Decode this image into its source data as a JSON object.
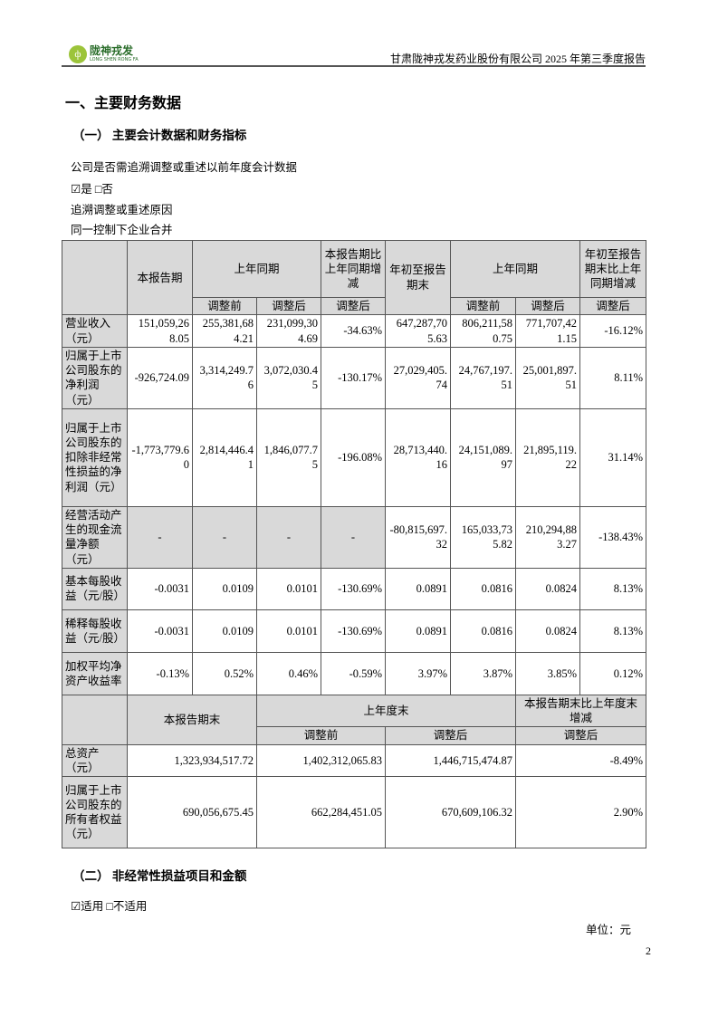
{
  "header": {
    "logo_cn": "陇神戎发",
    "logo_en": "LONG SHEN RONG FA",
    "report_title": "甘肃陇神戎发药业股份有限公司 2025 年第三季度报告"
  },
  "section_title": "一、主要财务数据",
  "subsection1": "（一） 主要会计数据和财务指标",
  "question": "公司是否需追溯调整或重述以前年度会计数据",
  "options1": "☑是 □否",
  "reason_label": "追溯调整或重述原因",
  "reason": "同一控制下企业合并",
  "table1": {
    "headers": {
      "current": "本报告期",
      "prior": "上年同期",
      "change": "本报告期比上年同期增减",
      "ytd": "年初至报告期末",
      "prior_ytd": "上年同期",
      "ytd_change": "年初至报告期末比上年同期增减",
      "before": "调整前",
      "after": "调整后"
    },
    "rows": [
      {
        "label": "营业收入（元）",
        "values": [
          "151,059,268.05",
          "255,381,684.21",
          "231,099,304.69",
          "-34.63%",
          "647,287,705.63",
          "806,211,580.75",
          "771,707,421.15",
          "-16.12%"
        ]
      },
      {
        "label": "归属于上市公司股东的净利润（元）",
        "values": [
          "-926,724.09",
          "3,314,249.76",
          "3,072,030.45",
          "-130.17%",
          "27,029,405.74",
          "24,767,197.51",
          "25,001,897.51",
          "8.11%"
        ]
      },
      {
        "label": "归属于上市公司股东的扣除非经常性损益的净利润（元）",
        "values": [
          "-1,773,779.60",
          "2,814,446.41",
          "1,846,077.75",
          "-196.08%",
          "28,713,440.16",
          "24,151,089.97",
          "21,895,119.22",
          "31.14%"
        ]
      },
      {
        "label": "经营活动产生的现金流量净额（元）",
        "values": [
          "-",
          "-",
          "-",
          "-",
          "-80,815,697.32",
          "165,033,735.82",
          "210,294,883.27",
          "-138.43%"
        ]
      },
      {
        "label": "基本每股收益（元/股）",
        "values": [
          "-0.0031",
          "0.0109",
          "0.0101",
          "-130.69%",
          "0.0891",
          "0.0816",
          "0.0824",
          "8.13%"
        ]
      },
      {
        "label": "稀释每股收益（元/股）",
        "values": [
          "-0.0031",
          "0.0109",
          "0.0101",
          "-130.69%",
          "0.0891",
          "0.0816",
          "0.0824",
          "8.13%"
        ]
      },
      {
        "label": "加权平均净资产收益率",
        "values": [
          "-0.13%",
          "0.52%",
          "0.46%",
          "-0.59%",
          "3.97%",
          "3.87%",
          "3.85%",
          "0.12%"
        ]
      }
    ],
    "headers2": {
      "current_end": "本报告期末",
      "prior_year_end": "上年度末",
      "change": "本报告期末比上年度末增减",
      "before": "调整前",
      "after": "调整后",
      "change_after": "调整后"
    },
    "rows2": [
      {
        "label": "总资产（元）",
        "values": [
          "1,323,934,517.72",
          "1,402,312,065.83",
          "1,446,715,474.87",
          "-8.49%"
        ]
      },
      {
        "label": "归属于上市公司股东的所有者权益（元）",
        "values": [
          "690,056,675.45",
          "662,284,451.05",
          "670,609,106.32",
          "2.90%"
        ]
      }
    ]
  },
  "subsection2": "（二） 非经常性损益项目和金额",
  "options2": "☑适用 □不适用",
  "unit": "单位：元",
  "page_number": "2",
  "colors": {
    "header_fill": "#d9d9d9",
    "border": "#555555",
    "logo_green": "#9cc43a"
  }
}
